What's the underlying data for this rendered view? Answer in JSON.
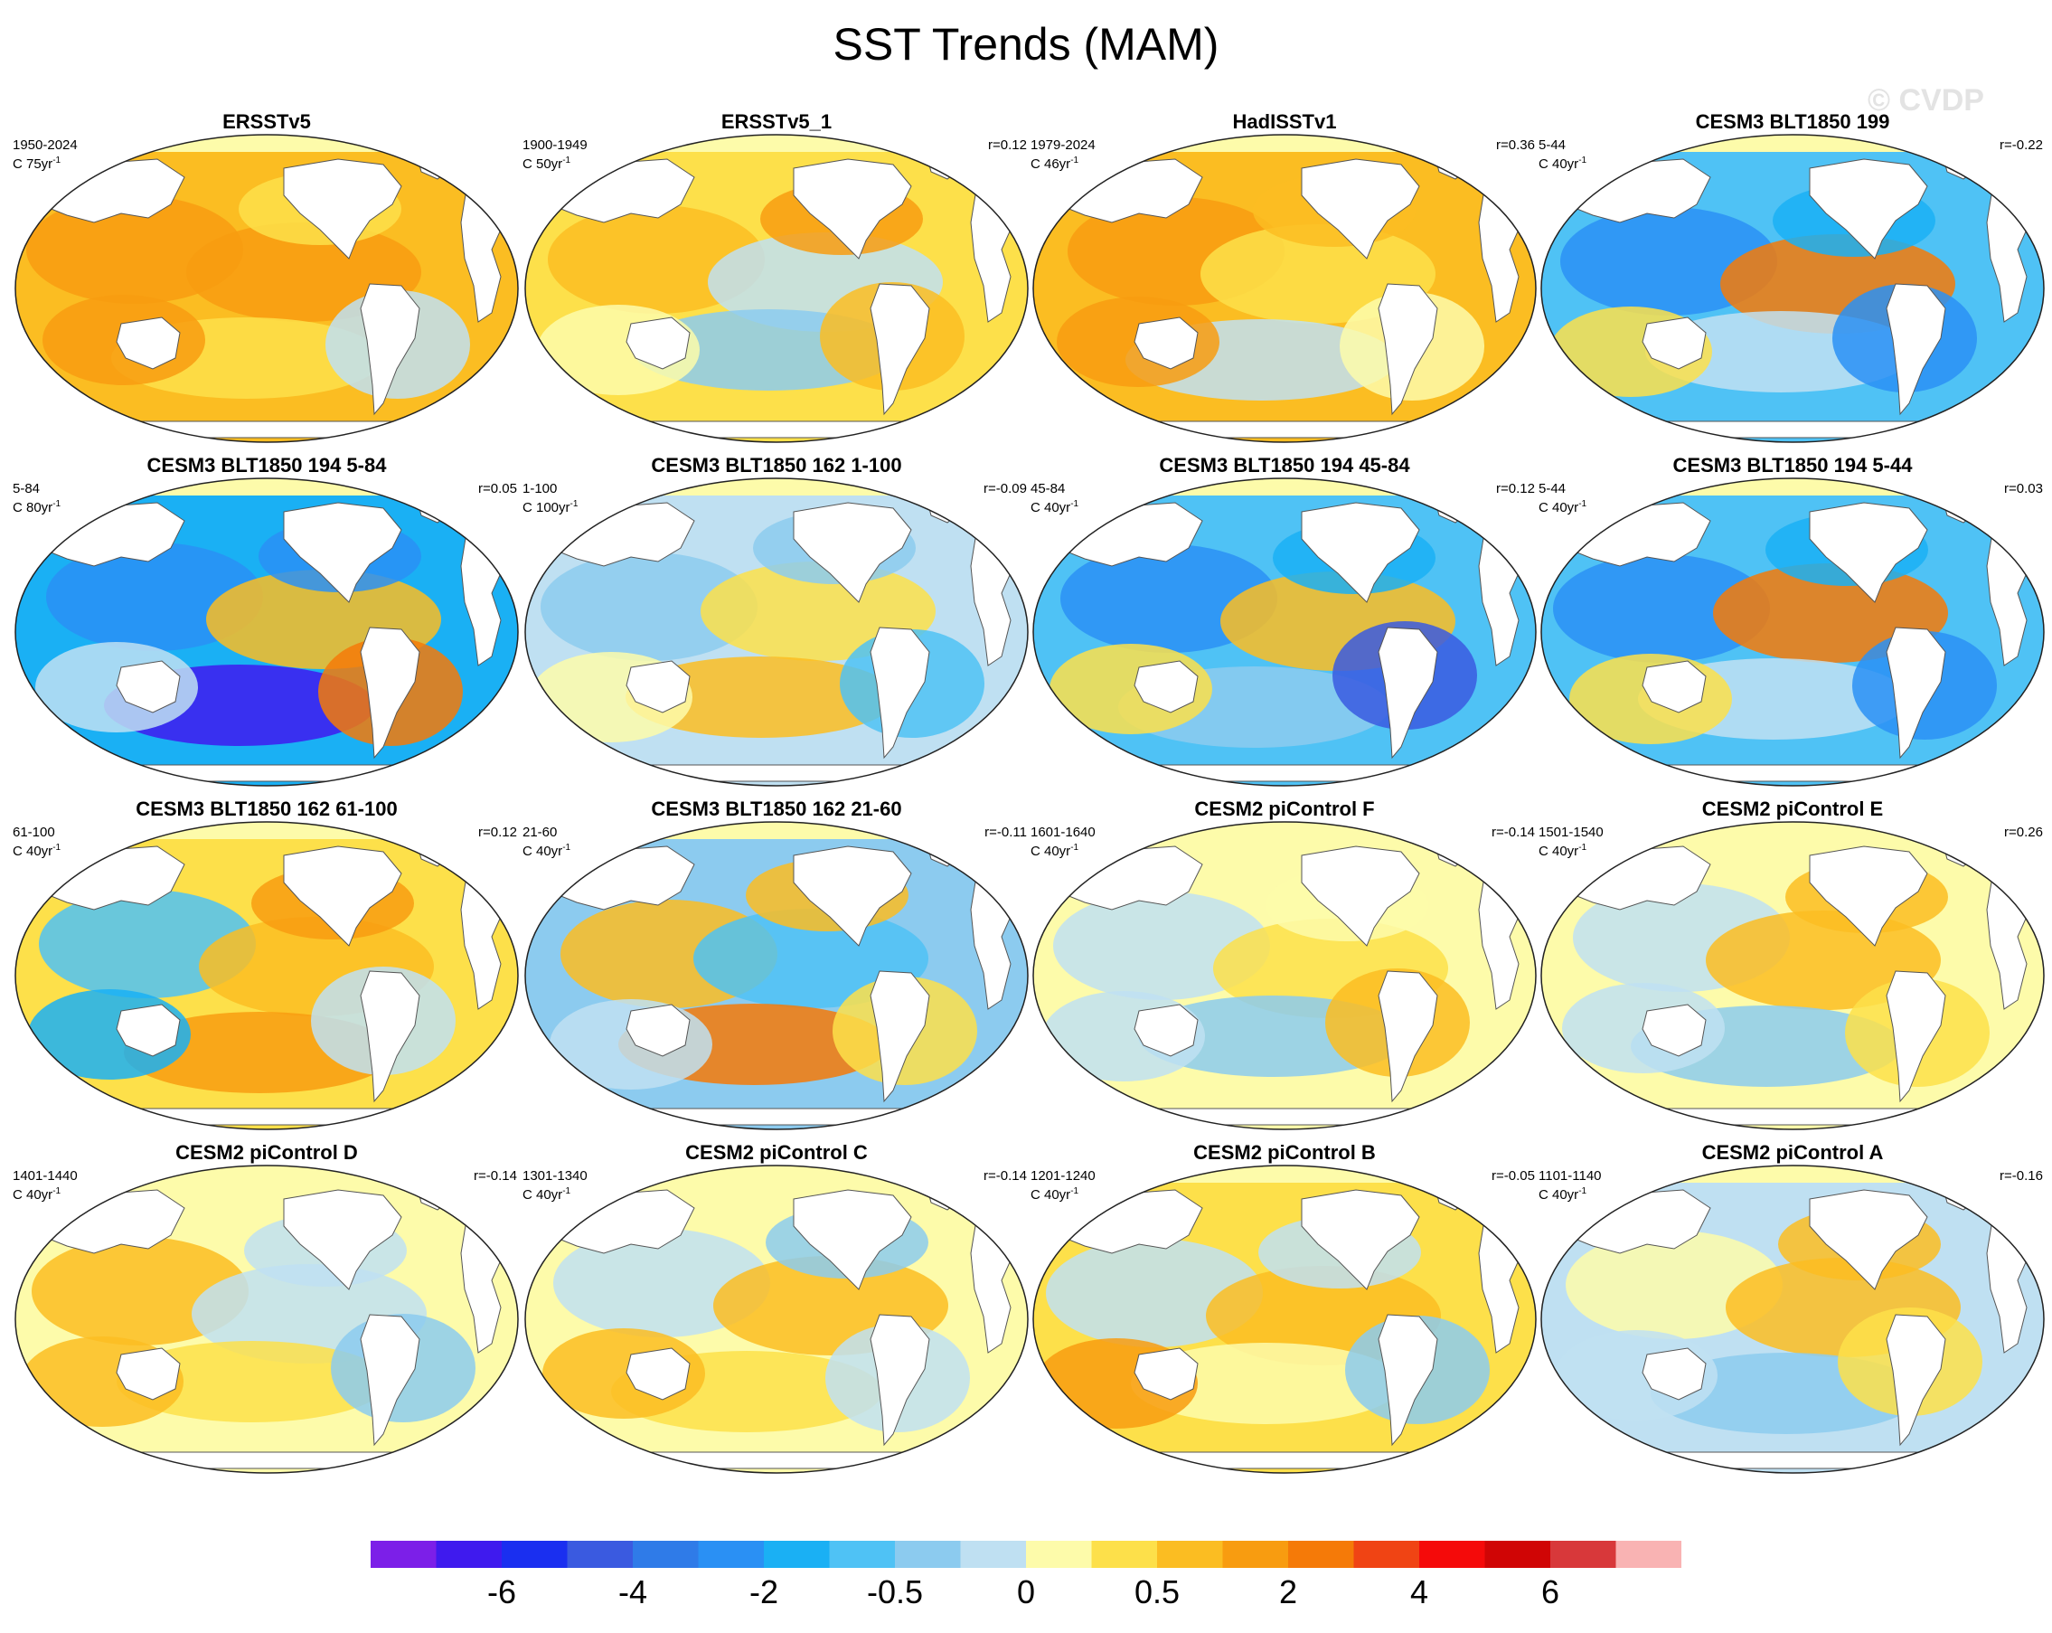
{
  "title": "SST Trends (MAM)",
  "watermark": "© CVDP",
  "panels": [
    {
      "title": "ERSSTv5",
      "years": "1950-2024",
      "units": "C 75yr",
      "r": "",
      "palette": "warm-a"
    },
    {
      "title": "ERSSTv5_1",
      "years": "1900-1949",
      "units": "C 50yr",
      "r": "r=0.12",
      "palette": "warm-mixed"
    },
    {
      "title": "HadISSTv1",
      "years": "1979-2024",
      "units": "C 46yr",
      "r": "r=0.36",
      "palette": "warm-b"
    },
    {
      "title": "CESM3 BLT1850 199",
      "years": "5-44",
      "units": "C 40yr",
      "r": "r=-0.22",
      "palette": "cold-a"
    },
    {
      "title": "CESM3 BLT1850 194 5-84",
      "years": "5-84",
      "units": "C 80yr",
      "r": "r=0.05",
      "palette": "cold-b"
    },
    {
      "title": "CESM3 BLT1850 162 1-100",
      "years": "1-100",
      "units": "C 100yr",
      "r": "r=-0.09",
      "palette": "light-cold"
    },
    {
      "title": "CESM3 BLT1850 194 45-84",
      "years": "45-84",
      "units": "C 40yr",
      "r": "r=0.12",
      "palette": "cold-c"
    },
    {
      "title": "CESM3 BLT1850 194 5-44",
      "years": "5-44",
      "units": "C 40yr",
      "r": "r=0.03",
      "palette": "cold-a"
    },
    {
      "title": "CESM3 BLT1850 162 61-100",
      "years": "61-100",
      "units": "C 40yr",
      "r": "r=0.12",
      "palette": "mixed-a"
    },
    {
      "title": "CESM3 BLT1850 162 21-60",
      "years": "21-60",
      "units": "C 40yr",
      "r": "r=-0.11",
      "palette": "mixed-b"
    },
    {
      "title": "CESM2 piControl F",
      "years": "1601-1640",
      "units": "C 40yr",
      "r": "r=-0.14",
      "palette": "pale-a"
    },
    {
      "title": "CESM2 piControl E",
      "years": "1501-1540",
      "units": "C 40yr",
      "r": "r=0.26",
      "palette": "pale-b"
    },
    {
      "title": "CESM2 piControl D",
      "years": "1401-1440",
      "units": "C 40yr",
      "r": "r=-0.14",
      "palette": "pale-c"
    },
    {
      "title": "CESM2 piControl C",
      "years": "1301-1340",
      "units": "C 40yr",
      "r": "r=-0.14",
      "palette": "pale-d"
    },
    {
      "title": "CESM2 piControl B",
      "years": "1201-1240",
      "units": "C 40yr",
      "r": "r=-0.05",
      "palette": "pale-e"
    },
    {
      "title": "CESM2 piControl A",
      "years": "1101-1140",
      "units": "C 40yr",
      "r": "r=-0.16",
      "palette": "pale-f"
    }
  ],
  "colorbar": {
    "colors": [
      "#7c1fe8",
      "#3f1aee",
      "#1a2ff0",
      "#3a5ae0",
      "#2f7be8",
      "#2a90f4",
      "#1ab0f4",
      "#4fc2f5",
      "#8ccbef",
      "#bfe0f2",
      "#fdfbaa",
      "#fde04a",
      "#fbbd22",
      "#f89c10",
      "#f57a08",
      "#f04414",
      "#f50a0a",
      "#d00505",
      "#d8383a",
      "#f9b3b3"
    ],
    "labels": [
      "-6",
      "-4",
      "-2",
      "-0.5",
      "0",
      "0.5",
      "2",
      "4",
      "6"
    ]
  }
}
